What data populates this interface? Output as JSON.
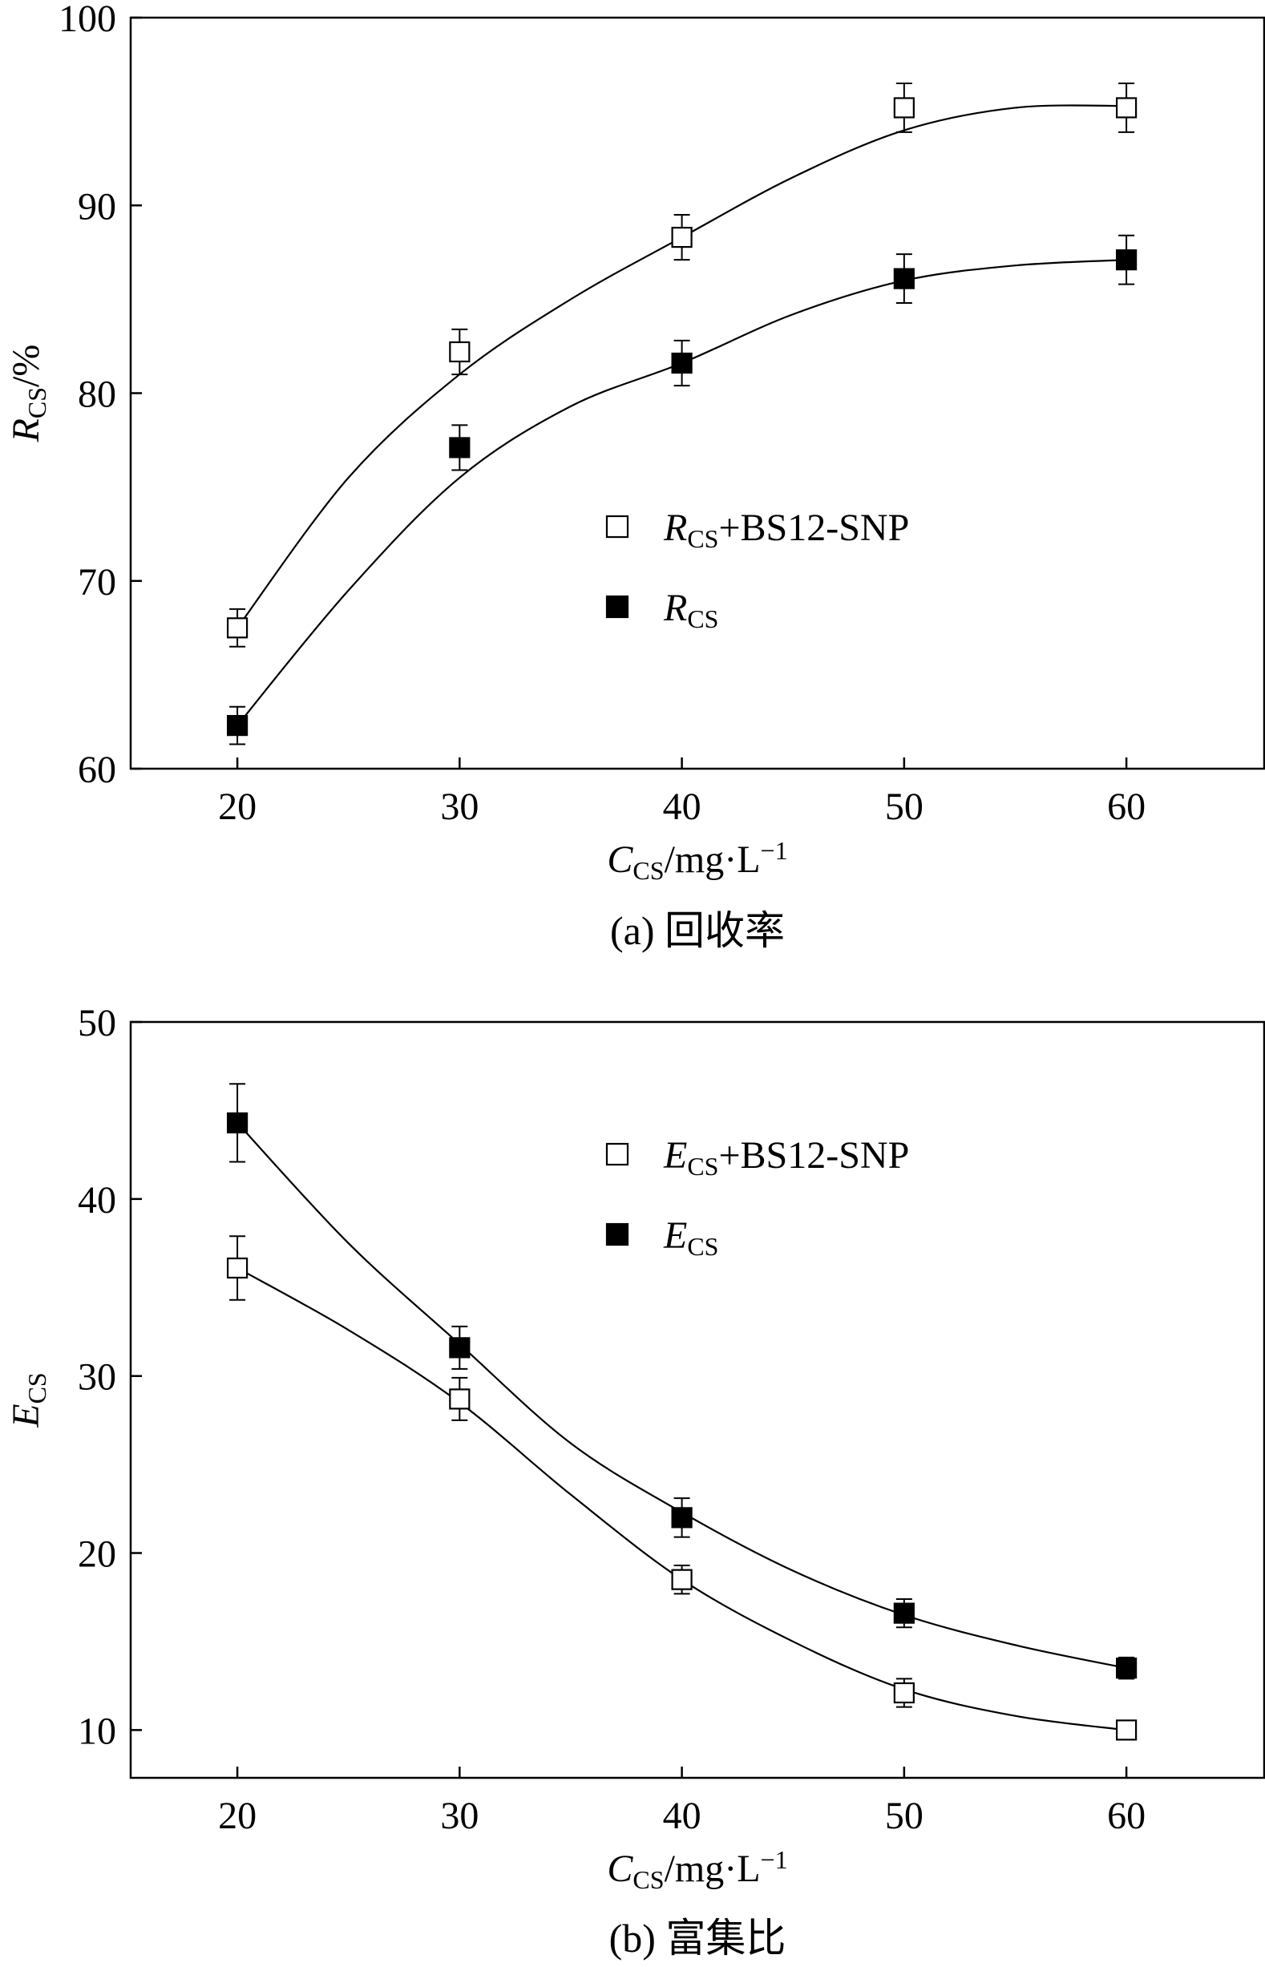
{
  "chart_data": [
    {
      "type": "line",
      "caption": "(a) 回收率",
      "xlabel": {
        "main": "C",
        "sub": "CS",
        "rest": "/mg·L",
        "sup": "−1"
      },
      "ylabel": {
        "main": "R",
        "sub": "CS",
        "rest": "/%"
      },
      "xlim": [
        15.2,
        66.2
      ],
      "ylim": [
        60,
        100
      ],
      "xticks": [
        20,
        30,
        40,
        50,
        60
      ],
      "yticks": [
        60,
        70,
        80,
        90,
        100
      ],
      "legend_position": "center-right",
      "series": [
        {
          "name": {
            "main": "R",
            "sub": "CS",
            "rest": "+BS12-SNP"
          },
          "marker": "open-square",
          "x": [
            20,
            30,
            40,
            50,
            60
          ],
          "y": [
            67.5,
            82.2,
            88.3,
            95.2,
            95.2
          ],
          "err": [
            1.0,
            1.2,
            1.2,
            1.3,
            1.3
          ],
          "curve": [
            [
              20,
              67.5
            ],
            [
              25,
              75.5
            ],
            [
              30,
              81.0
            ],
            [
              35,
              85.0
            ],
            [
              40,
              88.3
            ],
            [
              45,
              91.5
            ],
            [
              50,
              94.0
            ],
            [
              55,
              95.2
            ],
            [
              60,
              95.3
            ]
          ]
        },
        {
          "name": {
            "main": "R",
            "sub": "CS",
            "rest": ""
          },
          "marker": "filled-square",
          "x": [
            20,
            30,
            40,
            50,
            60
          ],
          "y": [
            62.3,
            77.1,
            81.6,
            86.1,
            87.1
          ],
          "err": [
            1.0,
            1.2,
            1.2,
            1.3,
            1.3
          ],
          "curve": [
            [
              20,
              62.3
            ],
            [
              25,
              69.5
            ],
            [
              30,
              75.5
            ],
            [
              35,
              79.3
            ],
            [
              40,
              81.6
            ],
            [
              45,
              84.2
            ],
            [
              50,
              86.0
            ],
            [
              55,
              86.8
            ],
            [
              60,
              87.1
            ]
          ]
        }
      ]
    },
    {
      "type": "line",
      "caption": "(b) 富集比",
      "xlabel": {
        "main": "C",
        "sub": "CS",
        "rest": "/mg·L",
        "sup": "−1"
      },
      "ylabel": {
        "main": "E",
        "sub": "CS",
        "rest": ""
      },
      "xlim": [
        15.2,
        66.2
      ],
      "ylim": [
        7.3,
        50
      ],
      "xticks": [
        20,
        30,
        40,
        50,
        60
      ],
      "yticks": [
        10,
        20,
        30,
        40,
        50
      ],
      "legend_position": "top-right",
      "series": [
        {
          "name": {
            "main": "E",
            "sub": "CS",
            "rest": "+BS12-SNP"
          },
          "marker": "open-square",
          "x": [
            20,
            30,
            40,
            50,
            60
          ],
          "y": [
            36.1,
            28.7,
            18.5,
            12.1,
            10.0
          ],
          "err": [
            1.8,
            1.2,
            0.8,
            0.8,
            0.4
          ],
          "curve": [
            [
              20,
              36.1
            ],
            [
              25,
              32.6
            ],
            [
              30,
              28.5
            ],
            [
              35,
              23.3
            ],
            [
              40,
              18.5
            ],
            [
              45,
              15.0
            ],
            [
              50,
              12.3
            ],
            [
              55,
              10.8
            ],
            [
              60,
              10.0
            ]
          ]
        },
        {
          "name": {
            "main": "E",
            "sub": "CS",
            "rest": ""
          },
          "marker": "filled-square",
          "x": [
            20,
            30,
            40,
            50,
            60
          ],
          "y": [
            44.3,
            31.6,
            22.0,
            16.6,
            13.5
          ],
          "err": [
            2.2,
            1.2,
            1.1,
            0.8,
            0.6
          ],
          "curve": [
            [
              20,
              44.3
            ],
            [
              25,
              37.5
            ],
            [
              30,
              31.8
            ],
            [
              35,
              26.2
            ],
            [
              40,
              22.3
            ],
            [
              45,
              19.0
            ],
            [
              50,
              16.5
            ],
            [
              55,
              14.8
            ],
            [
              60,
              13.5
            ]
          ]
        }
      ]
    }
  ]
}
